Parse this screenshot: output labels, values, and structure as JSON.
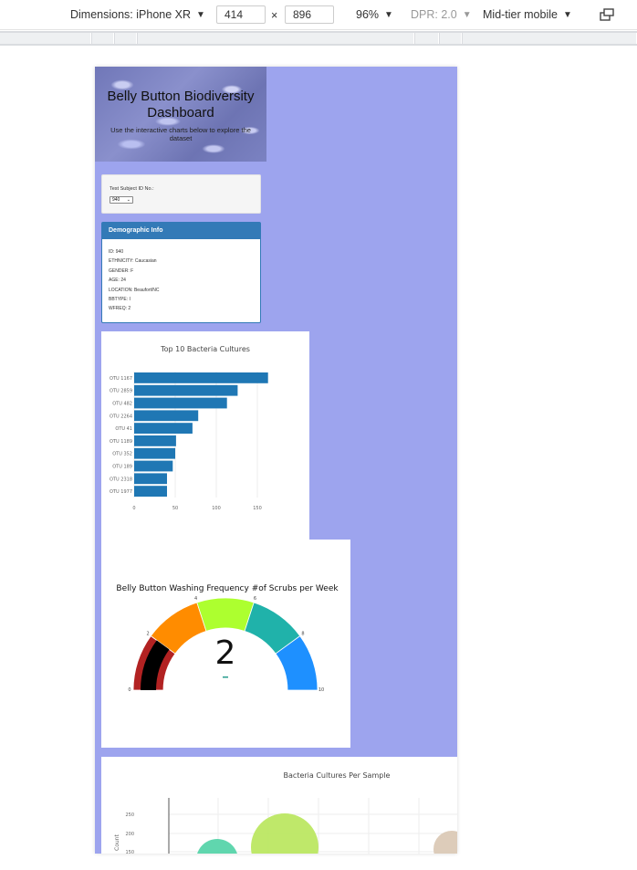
{
  "devtools": {
    "dimensions_label": "Dimensions: iPhone XR",
    "width": "414",
    "height": "896",
    "times": "×",
    "zoom": "96%",
    "dpr": "DPR: 2.0",
    "throttle": "Mid-tier mobile"
  },
  "page": {
    "title": "Belly Button Biodiversity Dashboard",
    "subtitle": "Use the interactive charts below to explore the dataset",
    "selector_label": "Test Subject ID No.:",
    "selected_id": "940",
    "demographic": {
      "heading": "Demographic Info",
      "rows": [
        "ID: 940",
        "ETHNICITY: Caucasian",
        "GENDER: F",
        "AGE: 24",
        "LOCATION: Beaufort/NC",
        "BBTYPE: I",
        "WFREQ: 2"
      ]
    }
  },
  "chart_data": [
    {
      "type": "bar",
      "orientation": "horizontal",
      "title": "Top 10 Bacteria Cultures",
      "categories": [
        "OTU 1167",
        "OTU 2859",
        "OTU 482",
        "OTU 2264",
        "OTU 41",
        "OTU 1189",
        "OTU 352",
        "OTU 189",
        "OTU 2318",
        "OTU 1977"
      ],
      "values": [
        163,
        126,
        113,
        78,
        71,
        51,
        50,
        47,
        40,
        40
      ],
      "xticks": [
        "0",
        "50",
        "100",
        "150"
      ],
      "xlim": [
        0,
        170
      ],
      "grid": true,
      "color": "#1f77b4"
    },
    {
      "type": "gauge",
      "title": "Belly Button Washing Frequency #of Scrubs per Week",
      "value": 2,
      "range": [
        0,
        10
      ],
      "ticks": [
        "0",
        "2",
        "4",
        "6",
        "8",
        "10"
      ],
      "bands": [
        {
          "from": 0,
          "to": 2,
          "color": "#b22222"
        },
        {
          "from": 2,
          "to": 4,
          "color": "#ff8c00"
        },
        {
          "from": 4,
          "to": 6,
          "color": "#adff2f"
        },
        {
          "from": 6,
          "to": 8,
          "color": "#20b2aa"
        },
        {
          "from": 8,
          "to": 10,
          "color": "#1e90ff"
        }
      ],
      "bar_color": "#000000"
    },
    {
      "type": "scatter",
      "title": "Bacteria Cultures Per Sample",
      "ylabel": "Count",
      "yticks": [
        "250",
        "200",
        "150"
      ]
    }
  ]
}
